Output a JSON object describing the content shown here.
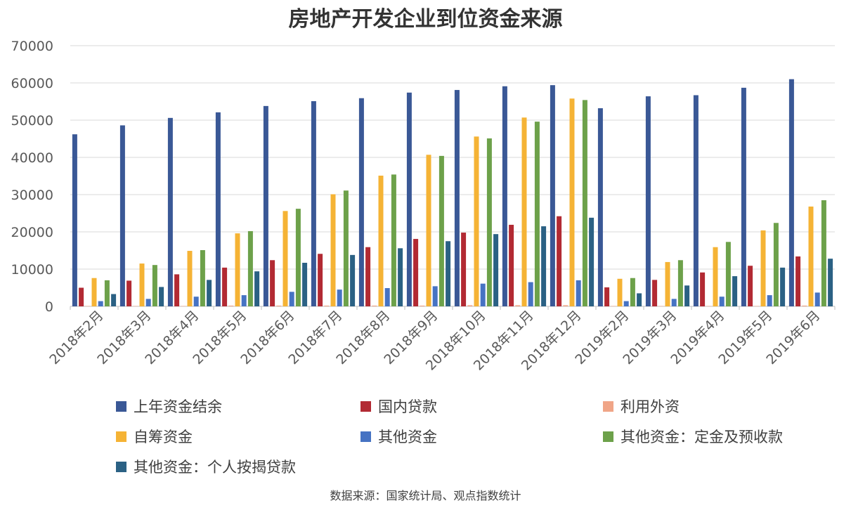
{
  "chart_data": {
    "type": "bar",
    "title": "房地产开发企业到位资金来源",
    "xlabel": "",
    "ylabel": "",
    "ylim": [
      0,
      70000
    ],
    "yticks": [
      0,
      10000,
      20000,
      30000,
      40000,
      50000,
      60000,
      70000
    ],
    "grid": true,
    "legend_position": "bottom",
    "categories": [
      "2018年2月",
      "2018年3月",
      "2018年4月",
      "2018年5月",
      "2018年6月",
      "2018年7月",
      "2018年8月",
      "2018年9月",
      "2018年10月",
      "2018年11月",
      "2018年12月",
      "2019年2月",
      "2019年3月",
      "2019年4月",
      "2019年5月",
      "2019年6月"
    ],
    "series": [
      {
        "name": "上年资金结余",
        "color": "#3a5896",
        "values": [
          46200,
          48600,
          50600,
          52100,
          53800,
          55100,
          55900,
          57400,
          58100,
          59100,
          59400,
          53200,
          56400,
          56700,
          58700,
          61000
        ]
      },
      {
        "name": "国内贷款",
        "color": "#b22a33",
        "values": [
          5000,
          6900,
          8600,
          10400,
          12400,
          14100,
          15900,
          18100,
          19800,
          21900,
          24200,
          5100,
          7100,
          9100,
          10900,
          13400
        ]
      },
      {
        "name": "利用外资",
        "color": "#f0a587",
        "values": [
          100,
          100,
          100,
          200,
          200,
          200,
          200,
          200,
          300,
          300,
          300,
          100,
          100,
          100,
          100,
          200
        ]
      },
      {
        "name": "自筹资金",
        "color": "#f5b335",
        "values": [
          7600,
          11500,
          14900,
          19600,
          25600,
          30100,
          35100,
          40700,
          45600,
          50700,
          55800,
          7400,
          11900,
          15900,
          20400,
          26800
        ]
      },
      {
        "name": "其他资金",
        "color": "#4673c3",
        "values": [
          1400,
          2000,
          2600,
          3000,
          3900,
          4500,
          4900,
          5400,
          6100,
          6500,
          7000,
          1400,
          2000,
          2600,
          3000,
          3700
        ]
      },
      {
        "name": "其他资金：定金及预收款",
        "color": "#6da14a",
        "values": [
          7000,
          11100,
          15100,
          20200,
          26200,
          31100,
          35400,
          40400,
          45100,
          49600,
          55400,
          7600,
          12400,
          17300,
          22400,
          28500
        ]
      },
      {
        "name": "其他资金：个人按揭贷款",
        "color": "#2b6184",
        "values": [
          3300,
          5200,
          7100,
          9400,
          11700,
          13800,
          15600,
          17500,
          19400,
          21500,
          23800,
          3500,
          5600,
          8100,
          10400,
          12800
        ]
      }
    ]
  },
  "source_note": "数据来源：国家统计局、观点指数统计"
}
